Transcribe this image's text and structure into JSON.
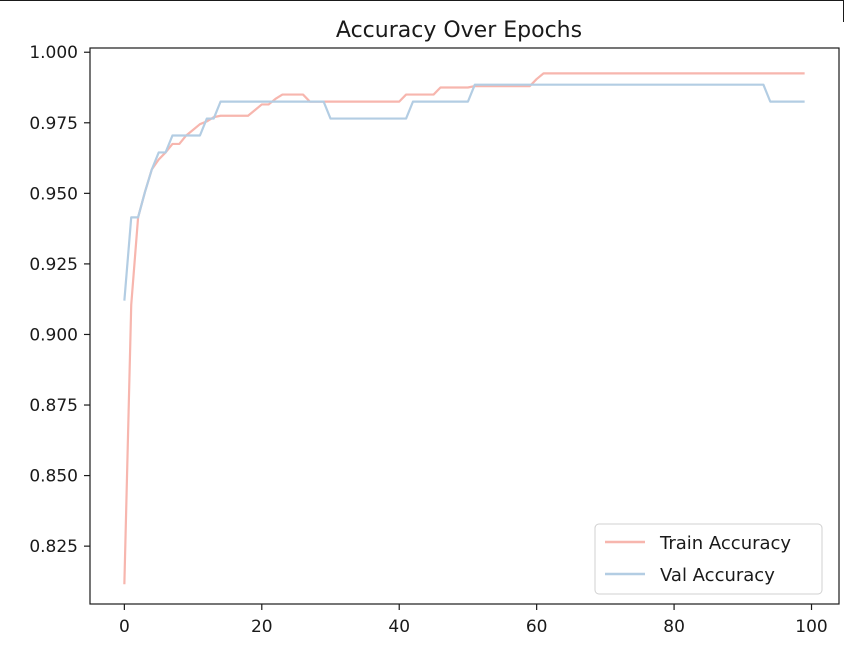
{
  "chart_data": {
    "type": "line",
    "title": "Accuracy Over Epochs",
    "xlabel": "",
    "ylabel": "",
    "xlim": [
      -5,
      104
    ],
    "ylim": [
      0.8045,
      1.0015
    ],
    "xticks": [
      0,
      20,
      40,
      60,
      80,
      100
    ],
    "yticks": [
      0.825,
      0.85,
      0.875,
      0.9,
      0.925,
      0.95,
      0.975,
      1.0
    ],
    "ytick_labels": [
      "0.825",
      "0.850",
      "0.875",
      "0.900",
      "0.925",
      "0.950",
      "0.975",
      "1.000"
    ],
    "grid": false,
    "legend_position": "lower right",
    "series": [
      {
        "name": "Train Accuracy",
        "color": "#f7b6ae",
        "x": [
          0,
          1,
          2,
          3,
          4,
          5,
          6,
          7,
          8,
          9,
          10,
          11,
          12,
          13,
          14,
          18,
          19,
          20,
          21,
          22,
          23,
          26,
          27,
          40,
          41,
          45,
          46,
          50,
          51,
          59,
          60,
          61,
          99
        ],
        "y": [
          0.8115,
          0.9105,
          0.9415,
          0.9505,
          0.9585,
          0.962,
          0.9645,
          0.9675,
          0.9675,
          0.9705,
          0.9725,
          0.9745,
          0.9755,
          0.977,
          0.9775,
          0.9775,
          0.9795,
          0.9815,
          0.9815,
          0.9835,
          0.985,
          0.985,
          0.9825,
          0.9825,
          0.985,
          0.985,
          0.9875,
          0.9875,
          0.988,
          0.988,
          0.9905,
          0.9925,
          0.9925
        ]
      },
      {
        "name": "Val Accuracy",
        "color": "#b3cde3",
        "x": [
          0,
          1,
          2,
          3,
          4,
          5,
          6,
          7,
          11,
          12,
          13,
          14,
          29,
          30,
          41,
          42,
          49,
          50,
          51,
          93,
          94,
          99
        ],
        "y": [
          0.912,
          0.9415,
          0.9415,
          0.9505,
          0.9585,
          0.9645,
          0.9645,
          0.9705,
          0.9705,
          0.9765,
          0.9765,
          0.9825,
          0.9825,
          0.9765,
          0.9765,
          0.9825,
          0.9825,
          0.9825,
          0.9885,
          0.9885,
          0.9825,
          0.9825
        ]
      }
    ]
  }
}
